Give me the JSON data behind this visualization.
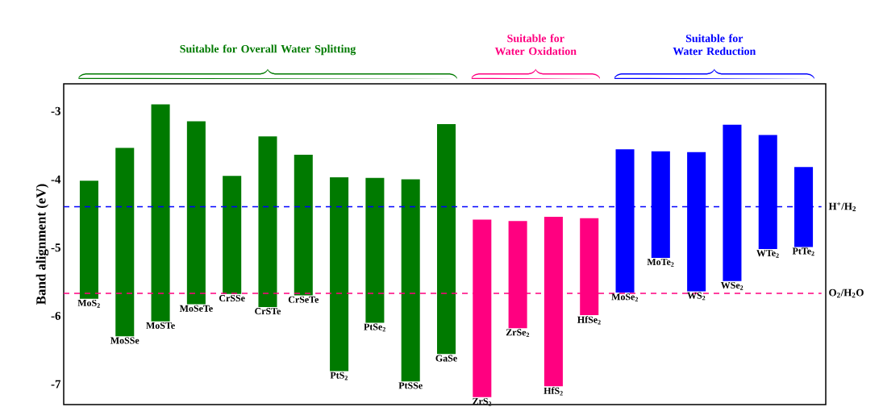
{
  "chart_data": {
    "type": "bar",
    "ylabel": "Band alignment (eV)",
    "categories": [
      "MoS$_{2}$",
      "MoSSe",
      "MoSTe",
      "MoSeTe",
      "CrSSe",
      "CrSTe",
      "CrSeTe",
      "PtS$_{2}$",
      "PtSe$_{2}$",
      "PtSSe",
      "GaSe",
      "ZrS$_{2}$",
      "ZrSe$_{2}$",
      "HfS$_{2}$",
      "HfSe$_{2}$",
      "MoSe$_{2}$",
      "MoTe$_{2}$",
      "WS$_{2}$",
      "WSe$_{2}$",
      "WTe$_{2}$",
      "PtTe$_{2}$"
    ],
    "base": [
      -5.75,
      -6.3,
      -6.08,
      -5.83,
      -5.68,
      -5.87,
      -5.7,
      -6.81,
      -6.1,
      -6.96,
      -6.56,
      -7.19,
      -6.18,
      -7.03,
      -5.99,
      -5.66,
      -5.15,
      -5.64,
      -5.49,
      -5.02,
      -4.99
    ],
    "values": [
      1.73,
      2.76,
      3.18,
      2.68,
      1.73,
      2.5,
      2.06,
      2.84,
      2.12,
      2.96,
      3.37,
      2.6,
      1.57,
      2.48,
      1.42,
      2.1,
      1.56,
      2.04,
      2.29,
      1.67,
      1.17
    ],
    "colors": [
      "#007a00",
      "#007a00",
      "#007a00",
      "#007a00",
      "#007a00",
      "#007a00",
      "#007a00",
      "#007a00",
      "#007a00",
      "#007a00",
      "#007a00",
      "#ff0080",
      "#ff0080",
      "#ff0080",
      "#ff0080",
      "#0000ff",
      "#0000ff",
      "#0000ff",
      "#0000ff",
      "#0000ff",
      "#0000ff"
    ],
    "ylim": [
      -7.3,
      -2.6
    ],
    "yticks": [
      -7,
      -6,
      -5,
      -4,
      -3
    ],
    "ref_lines": [
      {
        "axis": "y",
        "value": -4.4,
        "label": "H$^{+}$/H$_{2}$",
        "color": "#0000ff",
        "line_style": "dashed"
      },
      {
        "axis": "y",
        "value": -5.67,
        "label": "O$_{2}$/H$_{2}$O",
        "color": "#ff0080",
        "line_style": "dashed"
      }
    ],
    "annotations": [
      "Suitable for Overall Water Splitting",
      "Suitable for Water Oxidation",
      "Suitable for Water Reduction"
    ]
  }
}
